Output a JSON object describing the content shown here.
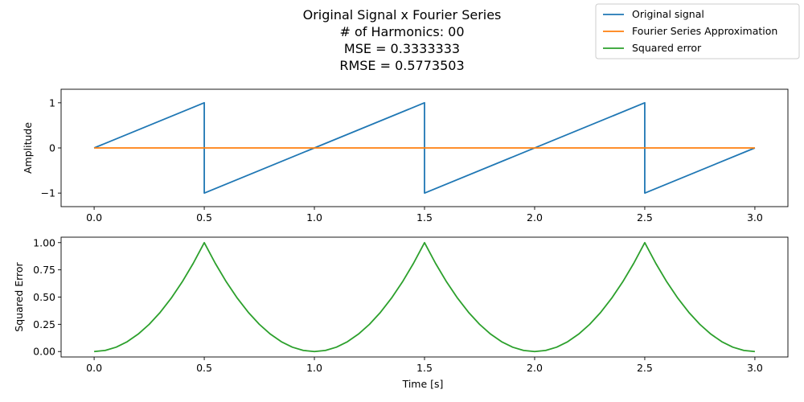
{
  "figure": {
    "title_lines": [
      "Original Signal x Fourier Series",
      "# of Harmonics: 00",
      "MSE = 0.3333333",
      "RMSE = 0.5773503"
    ]
  },
  "legend": {
    "placement": "top-right",
    "entries": [
      {
        "label": "Original signal",
        "color": "#1f77b4"
      },
      {
        "label": "Fourier Series Approximation",
        "color": "#ff7f0e"
      },
      {
        "label": "Squared error",
        "color": "#2ca02c"
      }
    ]
  },
  "chart_data": [
    {
      "type": "line",
      "ylabel": "Amplitude",
      "xlabel": "",
      "xlim": [
        -0.15,
        3.15
      ],
      "ylim": [
        -1.3,
        1.3
      ],
      "xticks": [
        0.0,
        0.5,
        1.0,
        1.5,
        2.0,
        2.5,
        3.0
      ],
      "xtick_labels": [
        "0.0",
        "0.5",
        "1.0",
        "1.5",
        "2.0",
        "2.5",
        "3.0"
      ],
      "yticks": [
        1,
        0,
        -1
      ],
      "ytick_labels": [
        "1",
        "0",
        "−1"
      ],
      "grid": false,
      "series": [
        {
          "name": "Original signal",
          "color": "#1f77b4",
          "x": [
            0.0,
            0.5,
            0.5,
            1.5,
            1.5,
            2.5,
            2.5,
            3.0
          ],
          "y": [
            0,
            1,
            -1,
            1,
            -1,
            1,
            -1,
            0
          ]
        },
        {
          "name": "Fourier Series Approximation",
          "color": "#ff7f0e",
          "x": [
            0.0,
            3.0
          ],
          "y": [
            0,
            0
          ]
        }
      ]
    },
    {
      "type": "line",
      "ylabel": "Squared Error",
      "xlabel": "Time [s]",
      "xlim": [
        -0.15,
        3.15
      ],
      "ylim": [
        -0.05,
        1.05
      ],
      "xticks": [
        0.0,
        0.5,
        1.0,
        1.5,
        2.0,
        2.5,
        3.0
      ],
      "xtick_labels": [
        "0.0",
        "0.5",
        "1.0",
        "1.5",
        "2.0",
        "2.5",
        "3.0"
      ],
      "yticks": [
        0.0,
        0.25,
        0.5,
        0.75,
        1.0
      ],
      "ytick_labels": [
        "0.00",
        "0.25",
        "0.50",
        "0.75",
        "1.00"
      ],
      "grid": false,
      "series": [
        {
          "name": "Squared error",
          "color": "#2ca02c",
          "x": [
            0.0,
            0.05,
            0.1,
            0.15,
            0.2,
            0.25,
            0.3,
            0.35,
            0.4,
            0.45,
            0.5,
            0.55,
            0.6,
            0.65,
            0.7,
            0.75,
            0.8,
            0.85,
            0.9,
            0.95,
            1.0,
            1.05,
            1.1,
            1.15,
            1.2,
            1.25,
            1.3,
            1.35,
            1.4,
            1.45,
            1.5,
            1.55,
            1.6,
            1.65,
            1.7,
            1.75,
            1.8,
            1.85,
            1.9,
            1.95,
            2.0,
            2.05,
            2.1,
            2.15,
            2.2,
            2.25,
            2.3,
            2.35,
            2.4,
            2.45,
            2.5,
            2.55,
            2.6,
            2.65,
            2.7,
            2.75,
            2.8,
            2.85,
            2.9,
            2.95,
            3.0
          ],
          "y": [
            0.0,
            0.01,
            0.04,
            0.09,
            0.16,
            0.25,
            0.36,
            0.49,
            0.64,
            0.81,
            1.0,
            0.81,
            0.64,
            0.49,
            0.36,
            0.25,
            0.16,
            0.09,
            0.04,
            0.01,
            0.0,
            0.01,
            0.04,
            0.09,
            0.16,
            0.25,
            0.36,
            0.49,
            0.64,
            0.81,
            1.0,
            0.81,
            0.64,
            0.49,
            0.36,
            0.25,
            0.16,
            0.09,
            0.04,
            0.01,
            0.0,
            0.01,
            0.04,
            0.09,
            0.16,
            0.25,
            0.36,
            0.49,
            0.64,
            0.81,
            1.0,
            0.81,
            0.64,
            0.49,
            0.36,
            0.25,
            0.16,
            0.09,
            0.04,
            0.01,
            0.0
          ]
        }
      ]
    }
  ]
}
